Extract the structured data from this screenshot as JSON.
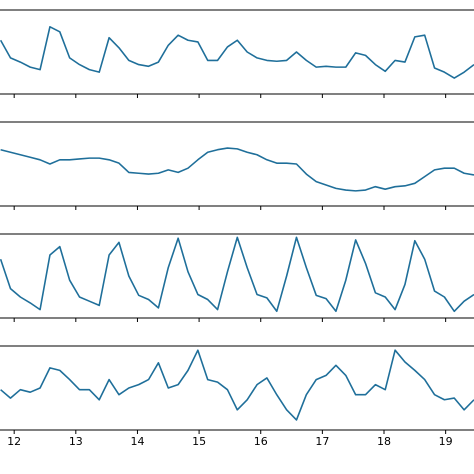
{
  "chart_data": [
    {
      "type": "line",
      "color": "#1f6f9a",
      "xlim": [
        11.77,
        19.46
      ],
      "ylim": [
        0,
        1
      ],
      "xticks": [
        12,
        13,
        14,
        15,
        16,
        17,
        18,
        19
      ],
      "xtick_labels": false,
      "x": [
        11.78,
        11.94,
        12.1,
        12.26,
        12.42,
        12.58,
        12.74,
        12.9,
        13.06,
        13.22,
        13.38,
        13.54,
        13.7,
        13.86,
        14.02,
        14.18,
        14.34,
        14.5,
        14.66,
        14.82,
        14.98,
        15.14,
        15.3,
        15.46,
        15.62,
        15.78,
        15.94,
        16.1,
        16.26,
        16.42,
        16.58,
        16.74,
        16.9,
        17.06,
        17.22,
        17.38,
        17.54,
        17.7,
        17.86,
        18.02,
        18.18,
        18.34,
        18.5,
        18.66,
        18.82,
        18.98,
        19.14,
        19.3,
        19.46
      ],
      "values": [
        0.64,
        0.43,
        0.38,
        0.32,
        0.29,
        0.8,
        0.74,
        0.43,
        0.35,
        0.29,
        0.26,
        0.67,
        0.55,
        0.4,
        0.35,
        0.33,
        0.38,
        0.58,
        0.7,
        0.64,
        0.62,
        0.4,
        0.4,
        0.56,
        0.64,
        0.5,
        0.43,
        0.4,
        0.39,
        0.4,
        0.5,
        0.4,
        0.32,
        0.33,
        0.32,
        0.32,
        0.49,
        0.46,
        0.35,
        0.27,
        0.4,
        0.38,
        0.68,
        0.7,
        0.31,
        0.26,
        0.19,
        0.26,
        0.35
      ]
    },
    {
      "type": "line",
      "color": "#1f6f9a",
      "xlim": [
        11.77,
        19.46
      ],
      "ylim": [
        0,
        1
      ],
      "xticks": [
        12,
        13,
        14,
        15,
        16,
        17,
        18,
        19
      ],
      "xtick_labels": false,
      "x": [
        11.78,
        11.94,
        12.1,
        12.26,
        12.42,
        12.58,
        12.74,
        12.9,
        13.06,
        13.22,
        13.38,
        13.54,
        13.7,
        13.86,
        14.02,
        14.18,
        14.34,
        14.5,
        14.66,
        14.82,
        14.98,
        15.14,
        15.3,
        15.46,
        15.62,
        15.78,
        15.94,
        16.1,
        16.26,
        16.42,
        16.58,
        16.74,
        16.9,
        17.06,
        17.22,
        17.38,
        17.54,
        17.7,
        17.86,
        18.02,
        18.18,
        18.34,
        18.5,
        18.66,
        18.82,
        18.98,
        19.14,
        19.3,
        19.46
      ],
      "values": [
        0.67,
        0.64,
        0.61,
        0.58,
        0.55,
        0.5,
        0.55,
        0.55,
        0.56,
        0.57,
        0.57,
        0.55,
        0.51,
        0.4,
        0.39,
        0.38,
        0.39,
        0.43,
        0.4,
        0.45,
        0.55,
        0.64,
        0.67,
        0.69,
        0.68,
        0.64,
        0.61,
        0.55,
        0.51,
        0.51,
        0.5,
        0.38,
        0.29,
        0.25,
        0.21,
        0.19,
        0.18,
        0.19,
        0.23,
        0.2,
        0.23,
        0.24,
        0.27,
        0.35,
        0.43,
        0.45,
        0.45,
        0.39,
        0.37
      ]
    },
    {
      "type": "line",
      "color": "#1f6f9a",
      "xlim": [
        11.77,
        19.46
      ],
      "ylim": [
        0,
        1
      ],
      "xticks": [
        12,
        13,
        14,
        15,
        16,
        17,
        18,
        19
      ],
      "xtick_labels": false,
      "x": [
        11.78,
        11.94,
        12.1,
        12.26,
        12.42,
        12.58,
        12.74,
        12.9,
        13.06,
        13.22,
        13.38,
        13.54,
        13.7,
        13.86,
        14.02,
        14.18,
        14.34,
        14.5,
        14.66,
        14.82,
        14.98,
        15.14,
        15.3,
        15.46,
        15.62,
        15.78,
        15.94,
        16.1,
        16.26,
        16.42,
        16.58,
        16.74,
        16.9,
        17.06,
        17.22,
        17.38,
        17.54,
        17.7,
        17.86,
        18.02,
        18.18,
        18.34,
        18.5,
        18.66,
        18.82,
        18.98,
        19.14,
        19.3,
        19.46
      ],
      "values": [
        0.7,
        0.35,
        0.25,
        0.18,
        0.1,
        0.75,
        0.85,
        0.45,
        0.25,
        0.2,
        0.15,
        0.75,
        0.9,
        0.5,
        0.27,
        0.22,
        0.12,
        0.6,
        0.95,
        0.55,
        0.28,
        0.22,
        0.1,
        0.55,
        0.96,
        0.6,
        0.28,
        0.24,
        0.08,
        0.5,
        0.96,
        0.6,
        0.27,
        0.23,
        0.08,
        0.45,
        0.93,
        0.65,
        0.3,
        0.25,
        0.1,
        0.4,
        0.92,
        0.7,
        0.32,
        0.25,
        0.08,
        0.2,
        0.28
      ]
    },
    {
      "type": "line",
      "color": "#1f6f9a",
      "xlim": [
        11.77,
        19.46
      ],
      "ylim": [
        0,
        1
      ],
      "xticks": [
        12,
        13,
        14,
        15,
        16,
        17,
        18,
        19
      ],
      "xtick_labels": true,
      "x": [
        11.78,
        11.94,
        12.1,
        12.26,
        12.42,
        12.58,
        12.74,
        12.9,
        13.06,
        13.22,
        13.38,
        13.54,
        13.7,
        13.86,
        14.02,
        14.18,
        14.34,
        14.5,
        14.66,
        14.82,
        14.98,
        15.14,
        15.3,
        15.46,
        15.62,
        15.78,
        15.94,
        16.1,
        16.26,
        16.42,
        16.58,
        16.74,
        16.9,
        17.06,
        17.22,
        17.38,
        17.54,
        17.7,
        17.86,
        18.02,
        18.18,
        18.34,
        18.5,
        18.66,
        18.82,
        18.98,
        19.14,
        19.3,
        19.46
      ],
      "values": [
        0.48,
        0.38,
        0.48,
        0.45,
        0.5,
        0.74,
        0.71,
        0.6,
        0.48,
        0.48,
        0.36,
        0.6,
        0.42,
        0.5,
        0.54,
        0.6,
        0.8,
        0.5,
        0.54,
        0.71,
        0.95,
        0.6,
        0.57,
        0.48,
        0.24,
        0.36,
        0.54,
        0.62,
        0.42,
        0.24,
        0.12,
        0.42,
        0.6,
        0.65,
        0.77,
        0.65,
        0.42,
        0.42,
        0.54,
        0.48,
        0.95,
        0.81,
        0.71,
        0.6,
        0.42,
        0.36,
        0.38,
        0.24,
        0.36
      ]
    }
  ]
}
